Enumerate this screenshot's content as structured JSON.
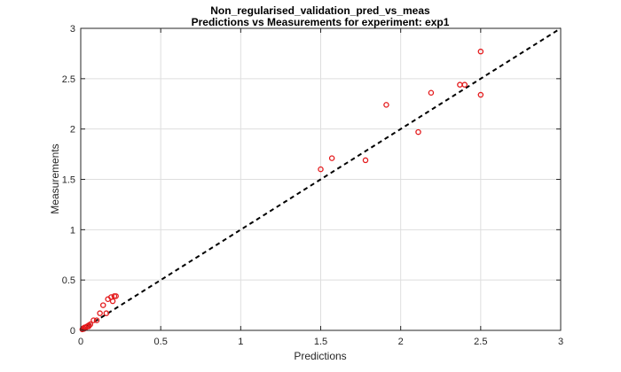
{
  "chart_data": {
    "type": "scatter",
    "title": "Non_regularised_validation_pred_vs_meas",
    "subtitle": "Predictions vs Measurements for experiment: exp1",
    "xlabel": "Predictions",
    "ylabel": "Measurements",
    "xlim": [
      0,
      3
    ],
    "ylim": [
      0,
      3
    ],
    "xticks": [
      "0",
      "0.5",
      "1",
      "1.5",
      "2",
      "2.5",
      "3"
    ],
    "yticks": [
      "0",
      "0.5",
      "1",
      "1.5",
      "2",
      "2.5",
      "3"
    ],
    "grid": true,
    "marker_color": "#e41a1c",
    "reference_line": {
      "style": "dashed",
      "color": "#000000",
      "from": [
        0,
        0
      ],
      "to": [
        3,
        3
      ]
    },
    "points": [
      {
        "x": 0.01,
        "y": 0.01
      },
      {
        "x": 0.015,
        "y": 0.02
      },
      {
        "x": 0.02,
        "y": 0.015
      },
      {
        "x": 0.025,
        "y": 0.03
      },
      {
        "x": 0.03,
        "y": 0.025
      },
      {
        "x": 0.04,
        "y": 0.04
      },
      {
        "x": 0.05,
        "y": 0.05
      },
      {
        "x": 0.06,
        "y": 0.06
      },
      {
        "x": 0.05,
        "y": 0.04
      },
      {
        "x": 0.08,
        "y": 0.1
      },
      {
        "x": 0.1,
        "y": 0.1
      },
      {
        "x": 0.12,
        "y": 0.17
      },
      {
        "x": 0.14,
        "y": 0.25
      },
      {
        "x": 0.16,
        "y": 0.17
      },
      {
        "x": 0.17,
        "y": 0.31
      },
      {
        "x": 0.19,
        "y": 0.33
      },
      {
        "x": 0.2,
        "y": 0.29
      },
      {
        "x": 0.21,
        "y": 0.34
      },
      {
        "x": 0.22,
        "y": 0.34
      },
      {
        "x": 1.5,
        "y": 1.6
      },
      {
        "x": 1.57,
        "y": 1.71
      },
      {
        "x": 1.78,
        "y": 1.69
      },
      {
        "x": 1.91,
        "y": 2.24
      },
      {
        "x": 2.11,
        "y": 1.97
      },
      {
        "x": 2.19,
        "y": 2.36
      },
      {
        "x": 2.37,
        "y": 2.44
      },
      {
        "x": 2.4,
        "y": 2.44
      },
      {
        "x": 2.5,
        "y": 2.34
      },
      {
        "x": 2.5,
        "y": 2.77
      }
    ]
  }
}
